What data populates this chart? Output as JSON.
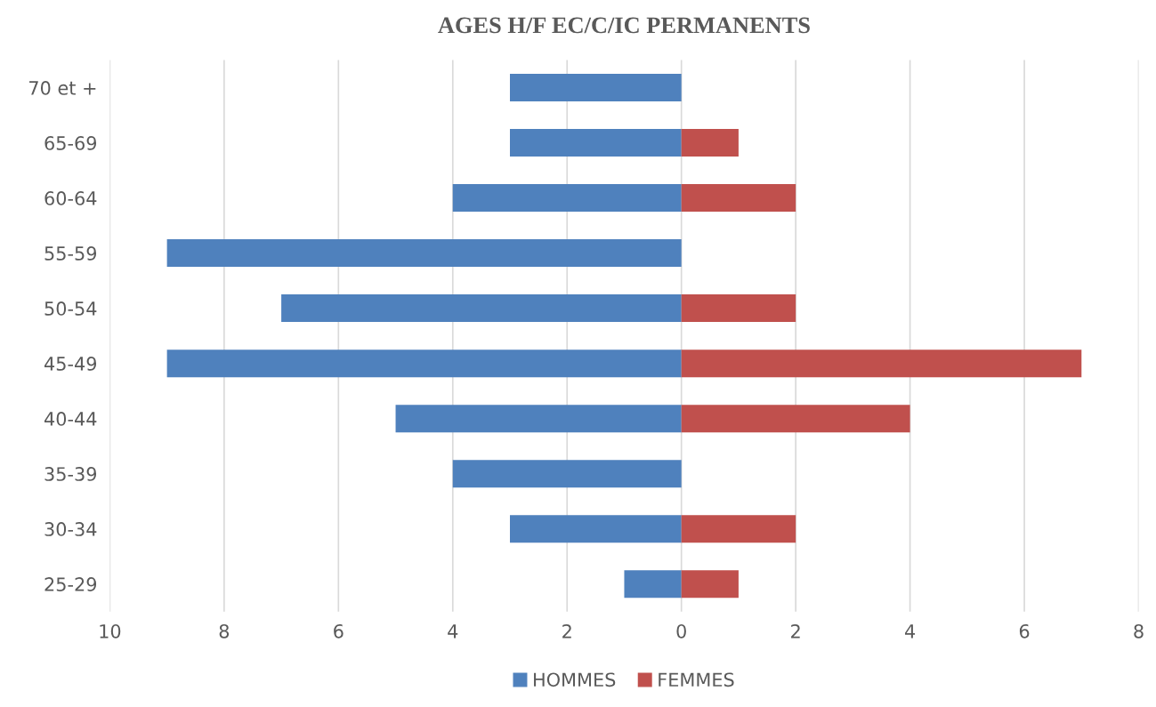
{
  "chart_data": {
    "type": "bar",
    "title": "AGES H/F EC/C/IC PERMANENTS",
    "orientation": "horizontal",
    "stacked": true,
    "categories": [
      "70 et +",
      "65-69",
      "60-64",
      "55-59",
      "50-54",
      "45-49",
      "40-44",
      "35-39",
      "30-34",
      "25-29"
    ],
    "series": [
      {
        "name": "HOMMES",
        "color": "#4f81bd",
        "values": [
          -3,
          -3,
          -4,
          -9,
          -7,
          -9,
          -5,
          -4,
          -3,
          -1
        ]
      },
      {
        "name": "FEMMES",
        "color": "#c0504d",
        "values": [
          null,
          1,
          2,
          null,
          2,
          7,
          4,
          null,
          2,
          1
        ]
      }
    ],
    "xlim": [
      -10,
      8
    ],
    "xticks": [
      {
        "value": -10,
        "label": "10"
      },
      {
        "value": -8,
        "label": "8"
      },
      {
        "value": -6,
        "label": "6"
      },
      {
        "value": -4,
        "label": "4"
      },
      {
        "value": -2,
        "label": "2"
      },
      0,
      2,
      4,
      6,
      8
    ],
    "grid": "x",
    "legend": "bottom"
  }
}
